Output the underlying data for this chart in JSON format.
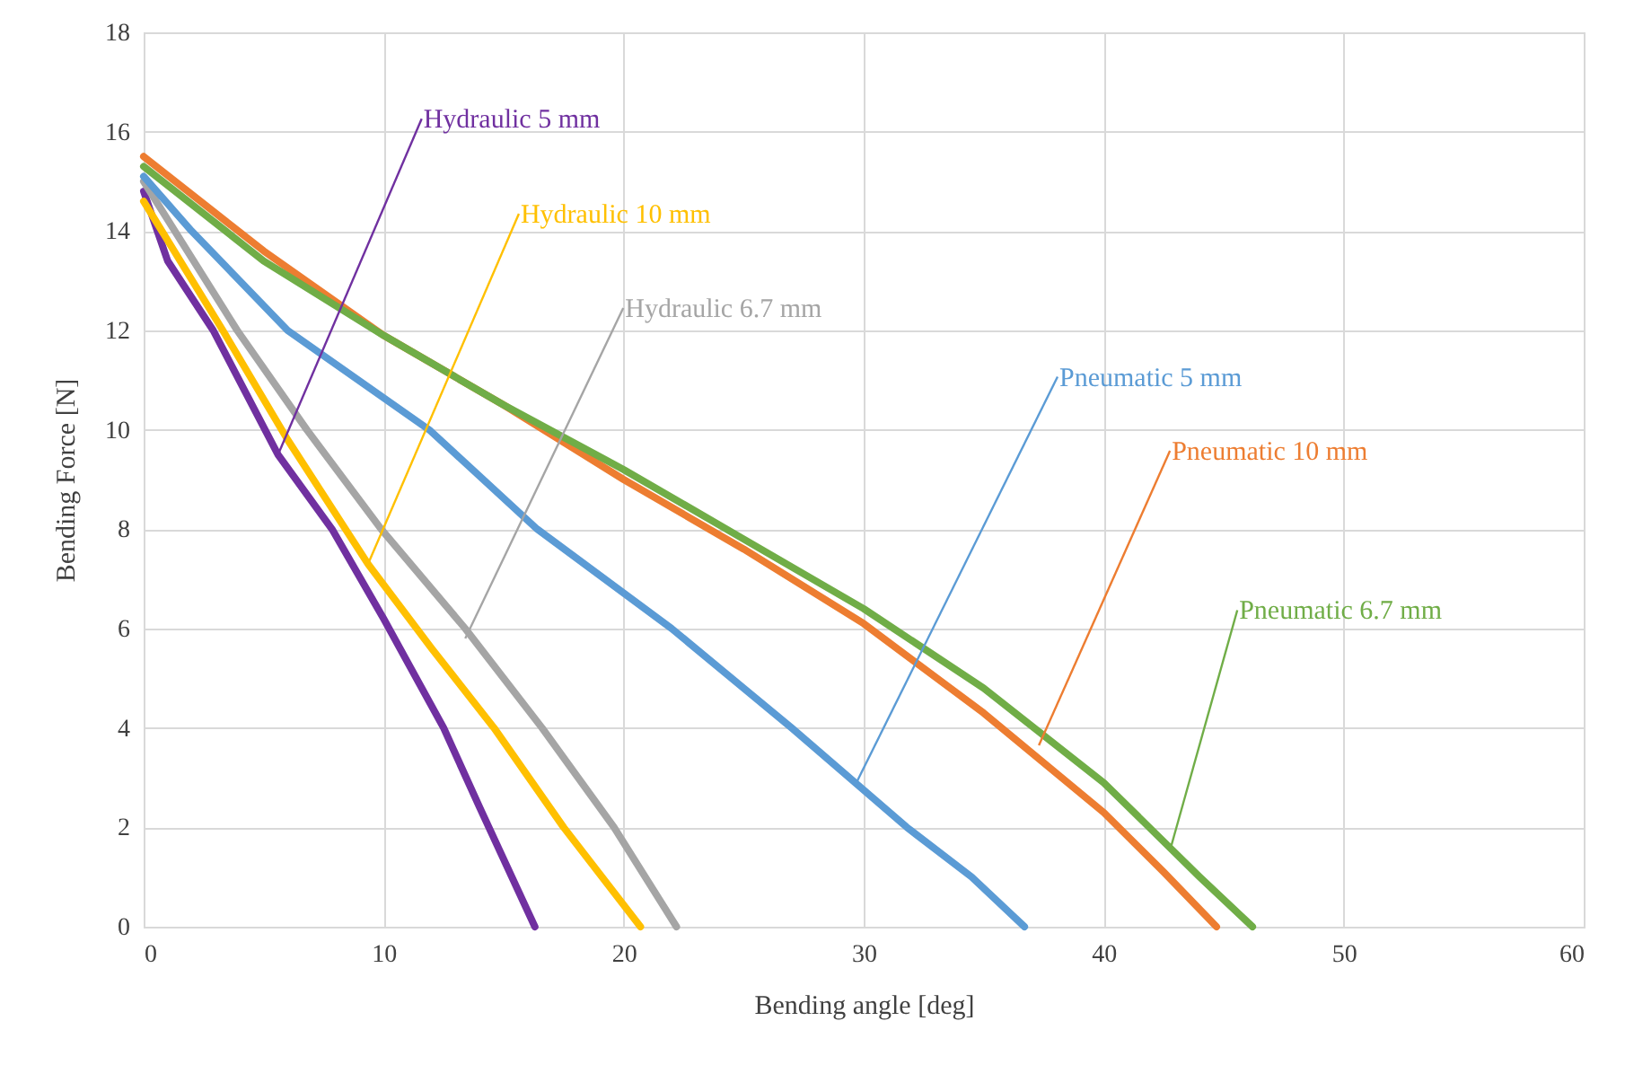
{
  "chart_data": {
    "type": "line",
    "xlabel": "Bending angle [deg]",
    "ylabel": "Bending Force [N]",
    "xlim": [
      0,
      60
    ],
    "xticks": [
      0,
      10,
      20,
      30,
      40,
      50,
      60
    ],
    "ylim": [
      0,
      18
    ],
    "yticks": [
      0,
      2,
      4,
      6,
      8,
      10,
      12,
      14,
      16,
      18
    ],
    "grid": true,
    "line_style": "solid",
    "series": [
      {
        "color": "#7030a0",
        "x": [
          0,
          1,
          2.9,
          5.6,
          7.85,
          10,
          12.5,
          14,
          16.3
        ],
        "values": [
          14.8,
          13.4,
          12,
          9.5,
          8,
          6.2,
          4,
          2.4,
          0
        ]
      },
      {
        "color": "#ffc000",
        "x": [
          0,
          3.3,
          6,
          9.35,
          12,
          14.6,
          17.5,
          20.7
        ],
        "values": [
          14.6,
          12,
          9.8,
          7.3,
          5.6,
          4,
          2,
          0
        ]
      },
      {
        "color": "#a5a5a5",
        "x": [
          0,
          3.9,
          6.8,
          9.9,
          13.4,
          16.6,
          19.6,
          22.2
        ],
        "values": [
          15,
          12,
          10,
          8,
          6,
          4,
          2,
          0
        ]
      },
      {
        "color": "#5b9bd5",
        "x": [
          0,
          2,
          6,
          11.9,
          16.4,
          22,
          27,
          31.8,
          34.5,
          36.7
        ],
        "values": [
          15.1,
          14,
          12,
          10,
          8,
          6,
          4,
          2,
          1,
          0
        ]
      },
      {
        "color": "#ed7d31",
        "x": [
          0,
          5,
          10,
          15,
          20,
          25,
          30,
          35,
          40,
          42.5,
          44.7
        ],
        "values": [
          15.5,
          13.6,
          11.9,
          10.5,
          9,
          7.6,
          6.1,
          4.3,
          2.3,
          1.1,
          0
        ]
      },
      {
        "color": "#70ad47",
        "x": [
          0,
          5,
          10,
          15,
          20,
          25,
          30,
          35,
          40,
          44,
          46.2
        ],
        "values": [
          15.3,
          13.4,
          11.9,
          10.5,
          9.2,
          7.8,
          6.4,
          4.8,
          2.9,
          1,
          0
        ]
      }
    ],
    "annotations": [
      {
        "text": "Hydraulic  5 mm",
        "x": 5.6,
        "y": 9.5
      },
      {
        "text": "Hydraulic  10 mm",
        "x": 9.35,
        "y": 7.3
      },
      {
        "text": "Hydraulic  6.7 mm",
        "x": 13.4,
        "y": 5.8
      },
      {
        "text": "Pneumatic  5 mm",
        "x": 29.7,
        "y": 2.9
      },
      {
        "text": "Pneumatic  10 mm",
        "x": 37.3,
        "y": 3.65
      },
      {
        "text": "Pneumatic  6.7 mm",
        "x": 42.8,
        "y": 1.6
      }
    ]
  }
}
